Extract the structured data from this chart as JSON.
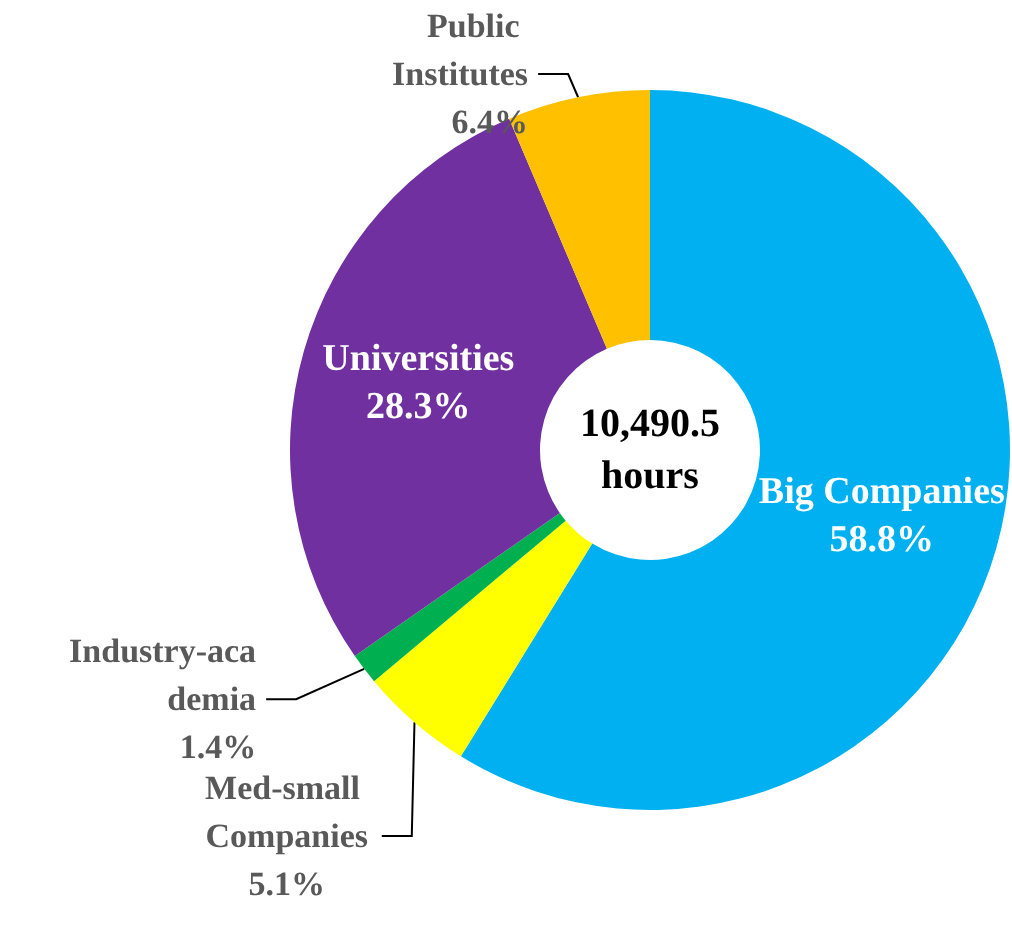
{
  "chart_data": {
    "type": "donut",
    "categories": [
      "Big Companies",
      "Med-small Companies",
      "Industry-academia",
      "Universities",
      "Public Institutes"
    ],
    "values": [
      58.8,
      5.1,
      1.4,
      28.3,
      6.4
    ],
    "value_labels": [
      "58.8%",
      "5.1%",
      "1.4%",
      "28.3%",
      "6.4%"
    ],
    "colors": [
      "#00b0f0",
      "#ffff00",
      "#00b050",
      "#7030a0",
      "#ffc000"
    ],
    "annotations": [
      "10,490.5\nhours"
    ],
    "legend": false
  }
}
